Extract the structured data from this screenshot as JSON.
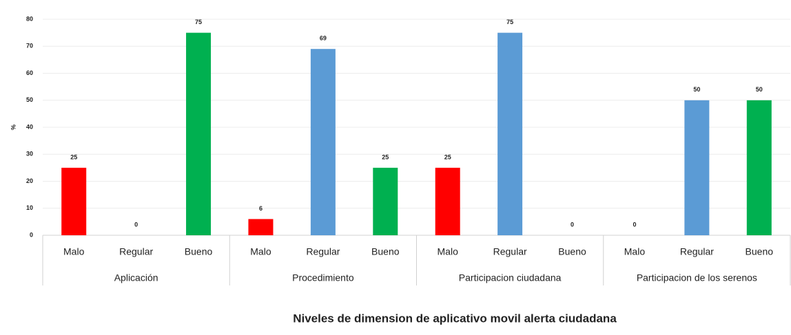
{
  "chart_data": {
    "type": "bar",
    "title": "Niveles de dimension de aplicativo movil alerta ciudadana",
    "y_label": "%",
    "categories": [
      "Malo",
      "Regular",
      "Bueno",
      "Malo",
      "Regular",
      "Bueno",
      "Malo",
      "Regular",
      "Bueno",
      "Malo",
      "Regular",
      "Bueno"
    ],
    "groups": [
      "Aplicación",
      "Procedimiento",
      "Participacion ciudadana",
      "Participacion de los serenos"
    ],
    "values": [
      25,
      0,
      75,
      6,
      69,
      25,
      25,
      75,
      0,
      0,
      50,
      50
    ],
    "colors": [
      "#ff0000",
      "#5b9bd5",
      "#00b050",
      "#ff0000",
      "#5b9bd5",
      "#00b050",
      "#ff0000",
      "#5b9bd5",
      "#00b050",
      "#ff0000",
      "#5b9bd5",
      "#00b050"
    ],
    "ylim": [
      0,
      80
    ],
    "yticks": [
      0,
      10,
      20,
      30,
      40,
      50,
      60,
      70,
      80
    ],
    "grid": true
  }
}
